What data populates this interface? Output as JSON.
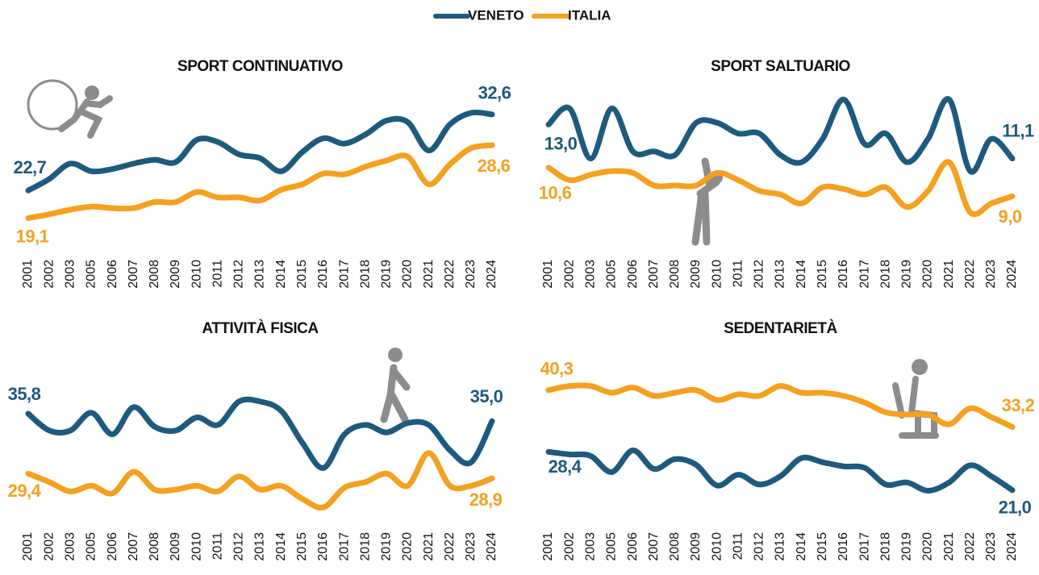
{
  "chart_data": [
    {
      "type": "line",
      "title": "SPORT CONTINUATIVO",
      "categories": [
        "2001",
        "2002",
        "2003",
        "2005",
        "2006",
        "2007",
        "2008",
        "2009",
        "2010",
        "2011",
        "2012",
        "2013",
        "2014",
        "2015",
        "2016",
        "2017",
        "2018",
        "2019",
        "2020",
        "2021",
        "2022",
        "2023",
        "2024"
      ],
      "ylim": [
        16,
        37
      ],
      "series": [
        {
          "name": "VENETO",
          "color": "#1d5a7e",
          "values": [
            22.7,
            24.2,
            26.2,
            25.2,
            25.5,
            26.2,
            26.7,
            26.4,
            29.3,
            29.0,
            27.4,
            26.9,
            25.2,
            27.7,
            29.5,
            28.8,
            30.0,
            31.8,
            31.6,
            27.9,
            31.3,
            32.8,
            32.6
          ],
          "value_labels": [
            "22,7",
            null,
            null,
            null,
            null,
            null,
            null,
            null,
            null,
            null,
            null,
            null,
            null,
            null,
            null,
            null,
            null,
            null,
            null,
            null,
            null,
            null,
            "32,6"
          ]
        },
        {
          "name": "ITALIA",
          "color": "#f5a01f",
          "values": [
            19.1,
            19.6,
            20.2,
            20.6,
            20.4,
            20.4,
            21.2,
            21.2,
            22.5,
            21.8,
            21.8,
            21.4,
            22.8,
            23.5,
            24.9,
            24.8,
            25.8,
            26.6,
            27.1,
            23.5,
            26.1,
            28.2,
            28.6
          ],
          "value_labels": [
            "19,1",
            null,
            null,
            null,
            null,
            null,
            null,
            null,
            null,
            null,
            null,
            null,
            null,
            null,
            null,
            null,
            null,
            null,
            null,
            null,
            null,
            null,
            "28,6"
          ]
        }
      ]
    },
    {
      "type": "line",
      "title": "SPORT SALTUARIO",
      "categories": [
        "2001",
        "2002",
        "2003",
        "2005",
        "2006",
        "2007",
        "2008",
        "2009",
        "2010",
        "2011",
        "2012",
        "2013",
        "2014",
        "2015",
        "2016",
        "2017",
        "2018",
        "2019",
        "2020",
        "2021",
        "2022",
        "2023",
        "2024"
      ],
      "ylim": [
        6,
        15
      ],
      "series": [
        {
          "name": "VENETO",
          "color": "#1d5a7e",
          "values": [
            13.0,
            13.9,
            11.1,
            13.9,
            11.5,
            11.5,
            11.3,
            13.1,
            13.1,
            12.5,
            12.5,
            11.3,
            10.9,
            12.2,
            14.4,
            11.9,
            12.5,
            10.9,
            12.2,
            14.4,
            10.4,
            12.2,
            11.1
          ],
          "value_labels": [
            "13,0",
            null,
            null,
            null,
            null,
            null,
            null,
            null,
            null,
            null,
            null,
            null,
            null,
            null,
            null,
            null,
            null,
            null,
            null,
            null,
            null,
            null,
            "11,1"
          ]
        },
        {
          "name": "ITALIA",
          "color": "#f5a01f",
          "values": [
            10.6,
            9.9,
            10.2,
            10.4,
            10.3,
            9.6,
            9.6,
            9.6,
            10.3,
            9.9,
            9.3,
            9.1,
            8.6,
            9.5,
            9.4,
            9.1,
            9.5,
            8.4,
            9.3,
            10.9,
            8.1,
            8.6,
            9.0
          ],
          "value_labels": [
            "10,6",
            null,
            null,
            null,
            null,
            null,
            null,
            null,
            null,
            null,
            null,
            null,
            null,
            null,
            null,
            null,
            null,
            null,
            null,
            null,
            null,
            null,
            "9,0"
          ]
        }
      ]
    },
    {
      "type": "line",
      "title": "ATTIVITÀ FISICA",
      "categories": [
        "2001",
        "2002",
        "2003",
        "2005",
        "2006",
        "2007",
        "2008",
        "2009",
        "2010",
        "2011",
        "2012",
        "2013",
        "2014",
        "2015",
        "2016",
        "2017",
        "2018",
        "2019",
        "2020",
        "2021",
        "2022",
        "2023",
        "2024"
      ],
      "ylim": [
        24,
        39.5
      ],
      "series": [
        {
          "name": "VENETO",
          "color": "#1d5a7e",
          "values": [
            35.8,
            34.0,
            34.0,
            35.9,
            33.6,
            36.5,
            34.4,
            34.0,
            35.4,
            34.6,
            37.1,
            37.1,
            36.1,
            32.7,
            30.0,
            33.6,
            34.6,
            33.8,
            34.8,
            34.6,
            31.9,
            30.6,
            35.0
          ],
          "value_labels": [
            "35,8",
            null,
            null,
            null,
            null,
            null,
            null,
            null,
            null,
            null,
            null,
            null,
            null,
            null,
            null,
            null,
            null,
            null,
            null,
            null,
            null,
            null,
            "35,0"
          ]
        },
        {
          "name": "ITALIA",
          "color": "#f5a01f",
          "values": [
            29.4,
            28.5,
            27.5,
            28.1,
            27.3,
            29.6,
            27.7,
            27.7,
            28.1,
            27.5,
            29.1,
            27.7,
            28.1,
            26.7,
            25.8,
            27.9,
            28.5,
            29.4,
            28.1,
            31.6,
            28.1,
            28.1,
            28.9
          ],
          "value_labels": [
            "29,4",
            null,
            null,
            null,
            null,
            null,
            null,
            null,
            null,
            null,
            null,
            null,
            null,
            null,
            null,
            null,
            null,
            null,
            null,
            null,
            null,
            null,
            "28,9"
          ]
        }
      ]
    },
    {
      "type": "line",
      "title": "SEDENTARIETÀ",
      "categories": [
        "2001",
        "2002",
        "2003",
        "2005",
        "2006",
        "2007",
        "2008",
        "2009",
        "2010",
        "2011",
        "2012",
        "2013",
        "2014",
        "2015",
        "2016",
        "2017",
        "2018",
        "2019",
        "2020",
        "2021",
        "2022",
        "2023",
        "2024"
      ],
      "ylim": [
        16,
        44
      ],
      "series": [
        {
          "name": "VENETO",
          "color": "#1d5a7e",
          "values": [
            28.4,
            27.9,
            27.6,
            24.5,
            28.7,
            25.1,
            27.0,
            25.9,
            21.9,
            24.0,
            22.1,
            23.7,
            27.2,
            26.4,
            25.6,
            25.3,
            22.1,
            22.5,
            20.9,
            22.5,
            25.8,
            23.7,
            21.0
          ],
          "value_labels": [
            "28,4",
            null,
            null,
            null,
            null,
            null,
            null,
            null,
            null,
            null,
            null,
            null,
            null,
            null,
            null,
            null,
            null,
            null,
            null,
            null,
            null,
            null,
            "21,0"
          ]
        },
        {
          "name": "ITALIA",
          "color": "#f5a01f",
          "values": [
            40.3,
            41.1,
            41.1,
            39.8,
            40.8,
            39.2,
            39.8,
            40.3,
            38.4,
            39.5,
            39.2,
            41.1,
            39.8,
            39.8,
            39.2,
            37.9,
            36.0,
            35.6,
            35.6,
            33.7,
            36.8,
            35.1,
            33.2
          ],
          "value_labels": [
            "40,3",
            null,
            null,
            null,
            null,
            null,
            null,
            null,
            null,
            null,
            null,
            null,
            null,
            null,
            null,
            null,
            null,
            null,
            null,
            null,
            null,
            null,
            "33,2"
          ]
        }
      ]
    }
  ]
}
